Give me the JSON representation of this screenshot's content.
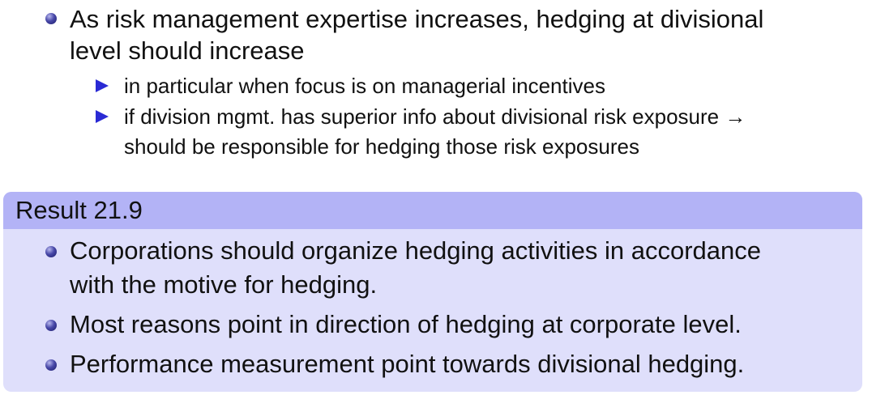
{
  "top_list": {
    "item": {
      "lines": [
        "As risk management expertise increases, hedging at divisional",
        "level should increase"
      ]
    },
    "subitems": [
      {
        "lines": [
          "in particular when focus is on managerial incentives"
        ]
      },
      {
        "lines": [
          "if division mgmt. has superior info about divisional risk exposure →",
          "should be responsible for hedging those risk exposures"
        ]
      }
    ]
  },
  "result_block": {
    "title": "Result 21.9",
    "items": [
      {
        "lines": [
          "Corporations should organize hedging activities in accordance",
          "with the motive for hedging."
        ]
      },
      {
        "lines": [
          "Most reasons point in direction of hedging at corporate level."
        ]
      },
      {
        "lines": [
          "Performance measurement point towards divisional hedging."
        ]
      }
    ]
  },
  "colors": {
    "block_header": "#b3b3f6",
    "block_body": "#dfdffb",
    "triangle_bullet": "#2a2ad4",
    "ball_bullet": "#2c2c80"
  }
}
